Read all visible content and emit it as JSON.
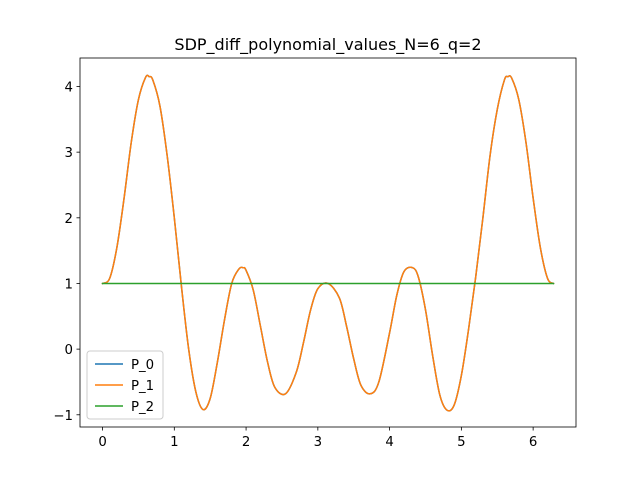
{
  "chart_data": {
    "type": "line",
    "title": "SDP_diff_polynomial_values_N=6_q=2",
    "xlabel": "",
    "ylabel": "",
    "xlim": [
      -0.3142,
      6.5973
    ],
    "ylim": [
      -1.186,
      4.434
    ],
    "xticks": [
      "0",
      "1",
      "2",
      "3",
      "4",
      "5",
      "6"
    ],
    "yticks": [
      "−1",
      "0",
      "1",
      "2",
      "3",
      "4"
    ],
    "xtick_values": [
      0,
      1,
      2,
      3,
      4,
      5,
      6
    ],
    "ytick_values": [
      -1,
      0,
      1,
      2,
      3,
      4
    ],
    "grid": false,
    "legend_position": "lower-left",
    "x_range": [
      0,
      6.2832
    ],
    "series": [
      {
        "name": "P_0",
        "color": "#1f77b4",
        "x": [
          0,
          0.1,
          0.2,
          0.3,
          0.4,
          0.5,
          0.6,
          0.65,
          0.7,
          0.8,
          0.9,
          1.0,
          1.1,
          1.2,
          1.3,
          1.4,
          1.5,
          1.6,
          1.7,
          1.8,
          1.9,
          1.96,
          2.0,
          2.1,
          2.2,
          2.3,
          2.4,
          2.55,
          2.7,
          2.8,
          2.9,
          3.0,
          3.1416,
          3.3,
          3.4,
          3.5,
          3.6,
          3.73,
          3.85,
          4.0,
          4.1,
          4.2,
          4.32,
          4.4,
          4.5,
          4.6,
          4.7,
          4.8,
          4.9,
          5.0,
          5.1,
          5.2,
          5.3,
          5.4,
          5.5,
          5.6,
          5.65,
          5.7,
          5.8,
          5.9,
          6.0,
          6.1,
          6.2,
          6.2832
        ],
        "y": [
          1.0,
          1.08,
          1.55,
          2.3,
          3.15,
          3.8,
          4.14,
          4.15,
          4.1,
          3.7,
          2.95,
          2.0,
          0.95,
          0.0,
          -0.65,
          -0.92,
          -0.75,
          -0.2,
          0.45,
          1.0,
          1.22,
          1.24,
          1.2,
          0.9,
          0.35,
          -0.2,
          -0.58,
          -0.68,
          -0.35,
          0.1,
          0.6,
          0.92,
          1.0,
          0.78,
          0.35,
          -0.15,
          -0.55,
          -0.68,
          -0.5,
          0.25,
          0.82,
          1.18,
          1.24,
          1.1,
          0.6,
          -0.1,
          -0.7,
          -0.93,
          -0.85,
          -0.4,
          0.3,
          1.1,
          2.0,
          2.95,
          3.65,
          4.1,
          4.15,
          4.13,
          3.8,
          3.15,
          2.3,
          1.55,
          1.08,
          1.0
        ]
      },
      {
        "name": "P_1",
        "color": "#ff7f0e",
        "x": [
          0,
          0.1,
          0.2,
          0.3,
          0.4,
          0.5,
          0.6,
          0.65,
          0.7,
          0.8,
          0.9,
          1.0,
          1.1,
          1.2,
          1.3,
          1.4,
          1.5,
          1.6,
          1.7,
          1.8,
          1.9,
          1.96,
          2.0,
          2.1,
          2.2,
          2.3,
          2.4,
          2.55,
          2.7,
          2.8,
          2.9,
          3.0,
          3.1416,
          3.3,
          3.4,
          3.5,
          3.6,
          3.73,
          3.85,
          4.0,
          4.1,
          4.2,
          4.32,
          4.4,
          4.5,
          4.6,
          4.7,
          4.8,
          4.9,
          5.0,
          5.1,
          5.2,
          5.3,
          5.4,
          5.5,
          5.6,
          5.65,
          5.7,
          5.8,
          5.9,
          6.0,
          6.1,
          6.2,
          6.2832
        ],
        "y": [
          1.0,
          1.08,
          1.55,
          2.3,
          3.15,
          3.8,
          4.14,
          4.15,
          4.1,
          3.7,
          2.95,
          2.0,
          0.95,
          0.0,
          -0.65,
          -0.92,
          -0.75,
          -0.2,
          0.45,
          1.0,
          1.22,
          1.24,
          1.2,
          0.9,
          0.35,
          -0.2,
          -0.58,
          -0.68,
          -0.35,
          0.1,
          0.6,
          0.92,
          1.0,
          0.78,
          0.35,
          -0.15,
          -0.55,
          -0.68,
          -0.5,
          0.25,
          0.82,
          1.18,
          1.24,
          1.1,
          0.6,
          -0.1,
          -0.7,
          -0.93,
          -0.85,
          -0.4,
          0.3,
          1.1,
          2.0,
          2.95,
          3.65,
          4.1,
          4.15,
          4.13,
          3.8,
          3.15,
          2.3,
          1.55,
          1.08,
          1.0
        ]
      },
      {
        "name": "P_2",
        "color": "#2ca02c",
        "x": [
          0,
          6.2832
        ],
        "y": [
          1.0,
          1.0
        ]
      }
    ]
  }
}
